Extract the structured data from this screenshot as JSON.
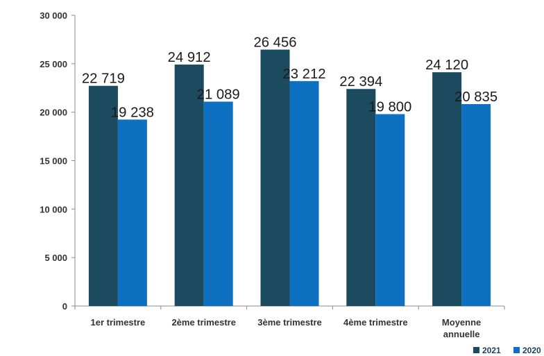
{
  "chart_data": {
    "type": "bar",
    "categories": [
      "1er trimestre",
      "2ème trimestre",
      "3ème trimestre",
      "4ème trimestre",
      "Moyenne annuelle"
    ],
    "category_lines": [
      [
        "1er trimestre"
      ],
      [
        "2ème trimestre"
      ],
      [
        "3ème trimestre"
      ],
      [
        "4ème trimestre"
      ],
      [
        "Moyenne",
        "annuelle"
      ]
    ],
    "series": [
      {
        "name": "2021",
        "values": [
          22719,
          24912,
          26456,
          22394,
          24120
        ],
        "labels": [
          "22 719",
          "24 912",
          "26 456",
          "22 394",
          "24 120"
        ],
        "color": "#1c4b5f"
      },
      {
        "name": "2020",
        "values": [
          19238,
          21089,
          23212,
          19800,
          20835
        ],
        "labels": [
          "19 238",
          "21 089",
          "23 212",
          "19 800",
          "20 835"
        ],
        "color": "#0e70c0"
      }
    ],
    "ylim": [
      0,
      30000
    ],
    "yticks": [
      0,
      5000,
      10000,
      15000,
      20000,
      25000,
      30000
    ],
    "ytick_labels": [
      "0",
      "5 000",
      "10 000",
      "15 000",
      "20 000",
      "25 000",
      "30 000"
    ],
    "legend_position": "bottom-right",
    "grid": false,
    "title": "",
    "xlabel": "",
    "ylabel": ""
  }
}
